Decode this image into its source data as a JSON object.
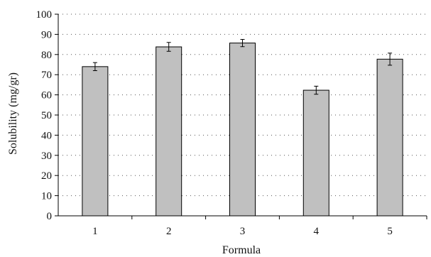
{
  "chart_data": {
    "type": "bar",
    "title": "",
    "xlabel": "Formula",
    "ylabel": "Solubility (mg/gr)",
    "categories": [
      "1",
      "2",
      "3",
      "4",
      "5"
    ],
    "values": [
      74,
      83.8,
      85.7,
      62.3,
      77.7
    ],
    "error": [
      2,
      2.2,
      1.8,
      2,
      3
    ],
    "ylim": [
      0,
      100
    ],
    "yticks": [
      0,
      10,
      20,
      30,
      40,
      50,
      60,
      70,
      80,
      90,
      100
    ],
    "grid": true,
    "colors": {
      "bar_fill": "#c0c0c0",
      "bar_stroke": "#000000",
      "grid": "#555555"
    }
  }
}
